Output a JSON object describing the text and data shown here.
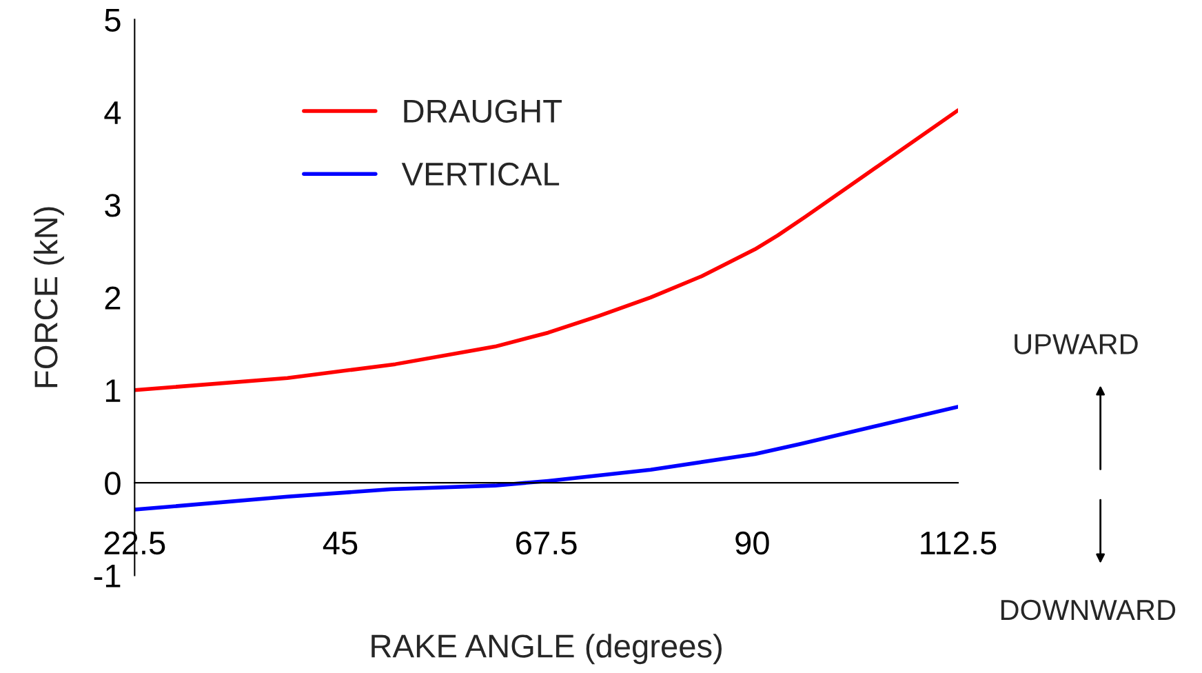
{
  "chart_data": {
    "type": "line",
    "xlabel": "RAKE ANGLE (degrees)",
    "ylabel": "FORCE (kN)",
    "series": [
      {
        "name": "DRAUGHT",
        "color": "#ff0000",
        "x": [
          22.5,
          39.2,
          51.0,
          61.9,
          67.7,
          73.2,
          78.9,
          84.5,
          90.3,
          92.8,
          95.8,
          112.5
        ],
        "values": [
          1.0,
          1.13,
          1.28,
          1.47,
          1.62,
          1.8,
          2.0,
          2.23,
          2.52,
          2.67,
          2.87,
          4.02
        ]
      },
      {
        "name": "VERTICAL",
        "color": "#0000ff",
        "x": [
          22.5,
          39.2,
          50.5,
          61.9,
          67.7,
          78.9,
          90.3,
          95.3,
          112.5
        ],
        "values": [
          -0.29,
          -0.15,
          -0.07,
          -0.03,
          0.02,
          0.14,
          0.31,
          0.42,
          0.82
        ]
      }
    ],
    "xlim": [
      22.5,
      112.5
    ],
    "ylim": [
      -1,
      5
    ],
    "xticks": [
      22.5,
      45,
      67.5,
      90,
      112.5
    ],
    "yticks": [
      {
        "value": -1,
        "label": "-1"
      },
      0,
      1,
      2,
      3,
      4,
      5
    ],
    "legend": "top left",
    "annotations": [
      "UPWARD",
      "DOWNWARD"
    ]
  }
}
